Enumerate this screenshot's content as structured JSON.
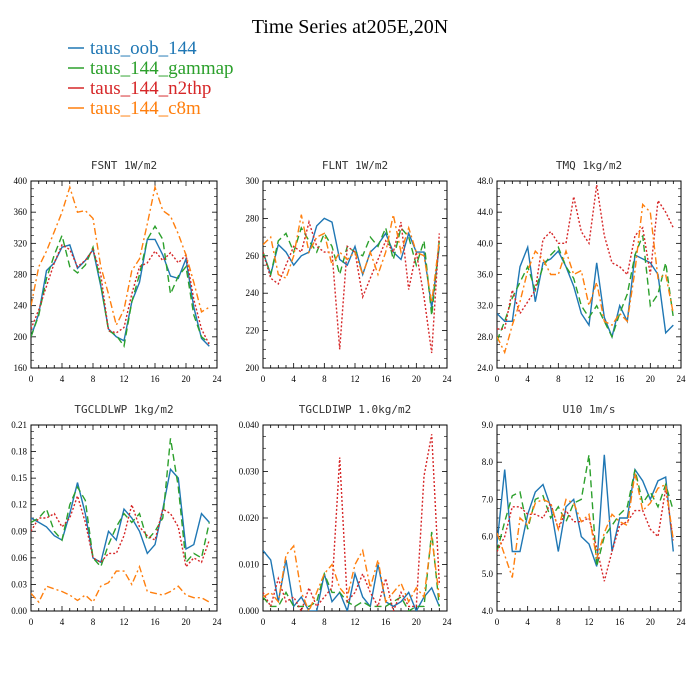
{
  "title": "Time Series at205E,20N",
  "legend": [
    {
      "name": "taus_oob_144",
      "color": "#1f77b4",
      "dash": "solid"
    },
    {
      "name": "taus_144_gammap",
      "color": "#2ca02c",
      "dash": "dashed"
    },
    {
      "name": "taus_144_n2thp",
      "color": "#d62728",
      "dash": "dotted"
    },
    {
      "name": "taus_144_c8m",
      "color": "#ff7f0e",
      "dash": "dashdot"
    }
  ],
  "chart_data": [
    {
      "type": "line",
      "title": "FSNT   1W/m2",
      "xlim": [
        0,
        24
      ],
      "xticks": [
        "0",
        "4",
        "8",
        "12",
        "16",
        "20",
        "24"
      ],
      "ylim": [
        160,
        400
      ],
      "yticks": [
        "160",
        "200",
        "240",
        "280",
        "320",
        "360",
        "400"
      ],
      "x": [
        0,
        1,
        2,
        3,
        4,
        5,
        6,
        7,
        8,
        9,
        10,
        11,
        12,
        13,
        14,
        15,
        16,
        17,
        18,
        19,
        20,
        21,
        22,
        23
      ],
      "series": [
        {
          "name": "taus_oob_144",
          "values": [
            200,
            230,
            285,
            295,
            315,
            318,
            288,
            298,
            312,
            265,
            210,
            200,
            195,
            245,
            270,
            325,
            325,
            305,
            278,
            275,
            300,
            238,
            198,
            188
          ]
        },
        {
          "name": "taus_144_gammap",
          "values": [
            200,
            228,
            275,
            305,
            330,
            290,
            282,
            292,
            315,
            268,
            208,
            202,
            188,
            245,
            280,
            325,
            342,
            325,
            255,
            278,
            290,
            228,
            200,
            192
          ]
        },
        {
          "name": "taus_144_n2thp",
          "values": [
            210,
            235,
            265,
            295,
            318,
            312,
            290,
            298,
            312,
            280,
            208,
            205,
            212,
            255,
            290,
            295,
            310,
            298,
            308,
            295,
            305,
            248,
            210,
            190
          ]
        },
        {
          "name": "taus_144_c8m",
          "values": [
            240,
            290,
            310,
            335,
            360,
            392,
            360,
            362,
            352,
            290,
            255,
            215,
            235,
            285,
            300,
            345,
            392,
            362,
            355,
            332,
            305,
            270,
            232,
            238
          ]
        }
      ]
    },
    {
      "type": "line",
      "title": "FLNT   1W/m2",
      "xlim": [
        0,
        24
      ],
      "xticks": [
        "0",
        "4",
        "8",
        "12",
        "16",
        "20",
        "24"
      ],
      "ylim": [
        200,
        300
      ],
      "yticks": [
        "200",
        "220",
        "240",
        "260",
        "280",
        "300"
      ],
      "x": [
        0,
        1,
        2,
        3,
        4,
        5,
        6,
        7,
        8,
        9,
        10,
        11,
        12,
        13,
        14,
        15,
        16,
        17,
        18,
        19,
        20,
        21,
        22,
        23
      ],
      "series": [
        {
          "name": "taus_oob_144",
          "values": [
            262,
            250,
            266,
            262,
            255,
            260,
            262,
            276,
            280,
            278,
            258,
            255,
            265,
            250,
            262,
            266,
            272,
            262,
            258,
            272,
            262,
            262,
            232,
            265
          ]
        },
        {
          "name": "taus_144_gammap",
          "values": [
            262,
            250,
            268,
            272,
            262,
            275,
            268,
            262,
            272,
            265,
            250,
            265,
            262,
            260,
            270,
            265,
            275,
            258,
            275,
            270,
            255,
            268,
            228,
            268
          ]
        },
        {
          "name": "taus_144_n2thp",
          "values": [
            262,
            248,
            245,
            255,
            265,
            262,
            278,
            265,
            262,
            262,
            210,
            265,
            262,
            238,
            248,
            258,
            268,
            262,
            278,
            242,
            262,
            238,
            208,
            272
          ]
        },
        {
          "name": "taus_144_c8m",
          "values": [
            266,
            270,
            250,
            248,
            260,
            282,
            262,
            270,
            272,
            255,
            262,
            258,
            262,
            250,
            262,
            250,
            262,
            282,
            262,
            275,
            262,
            260,
            235,
            268
          ]
        }
      ]
    },
    {
      "type": "line",
      "title": "TMQ   1kg/m2",
      "xlim": [
        0,
        24
      ],
      "xticks": [
        "0",
        "4",
        "8",
        "12",
        "16",
        "20",
        "24"
      ],
      "ylim": [
        24.0,
        48.0
      ],
      "yticks": [
        "24.0",
        "28.0",
        "32.0",
        "36.0",
        "40.0",
        "44.0",
        "48.0"
      ],
      "x": [
        0,
        1,
        2,
        3,
        4,
        5,
        6,
        7,
        8,
        9,
        10,
        11,
        12,
        13,
        14,
        15,
        16,
        17,
        18,
        19,
        20,
        21,
        22,
        23
      ],
      "series": [
        {
          "name": "taus_oob_144",
          "values": [
            31.0,
            30.0,
            30.0,
            37.0,
            39.5,
            32.5,
            37.5,
            38.0,
            39.0,
            37.0,
            34.5,
            31.0,
            29.5,
            37.5,
            30.5,
            28.0,
            32.0,
            30.0,
            38.5,
            38.0,
            37.5,
            36.0,
            28.5,
            29.5
          ]
        },
        {
          "name": "taus_144_gammap",
          "values": [
            27.5,
            30.0,
            33.0,
            35.0,
            37.0,
            34.0,
            37.0,
            38.5,
            39.5,
            37.0,
            35.5,
            32.0,
            30.5,
            32.0,
            30.0,
            28.0,
            31.0,
            33.5,
            38.5,
            41.0,
            32.0,
            33.5,
            37.5,
            30.5
          ]
        },
        {
          "name": "taus_144_n2thp",
          "values": [
            29.0,
            29.0,
            34.0,
            31.0,
            32.5,
            34.0,
            40.5,
            41.5,
            40.0,
            40.0,
            46.0,
            41.5,
            40.0,
            47.5,
            41.0,
            37.5,
            37.0,
            36.0,
            41.0,
            42.0,
            36.0,
            45.5,
            44.0,
            42.0
          ]
        },
        {
          "name": "taus_144_c8m",
          "values": [
            28.0,
            26.0,
            29.5,
            32.5,
            36.5,
            39.0,
            38.0,
            36.0,
            36.0,
            39.0,
            36.0,
            36.5,
            32.0,
            35.0,
            30.0,
            29.5,
            31.0,
            30.0,
            36.5,
            45.0,
            44.0,
            35.5,
            36.0,
            31.0
          ]
        }
      ]
    },
    {
      "type": "line",
      "title": "TGCLDLWP   1kg/m2",
      "xlim": [
        0,
        24
      ],
      "xticks": [
        "0",
        "4",
        "8",
        "12",
        "16",
        "20",
        "24"
      ],
      "ylim": [
        0.0,
        0.21
      ],
      "yticks": [
        "0.00",
        "0.03",
        "0.06",
        "0.09",
        "0.12",
        "0.15",
        "0.18",
        "0.21"
      ],
      "x": [
        0,
        1,
        2,
        3,
        4,
        5,
        6,
        7,
        8,
        9,
        10,
        11,
        12,
        13,
        14,
        15,
        16,
        17,
        18,
        19,
        20,
        21,
        22,
        23
      ],
      "series": [
        {
          "name": "taus_oob_144",
          "values": [
            0.105,
            0.1,
            0.095,
            0.085,
            0.08,
            0.11,
            0.145,
            0.11,
            0.06,
            0.055,
            0.09,
            0.08,
            0.115,
            0.105,
            0.09,
            0.065,
            0.075,
            0.115,
            0.16,
            0.15,
            0.07,
            0.075,
            0.11,
            0.1
          ]
        },
        {
          "name": "taus_144_gammap",
          "values": [
            0.1,
            0.105,
            0.115,
            0.09,
            0.08,
            0.12,
            0.14,
            0.125,
            0.06,
            0.05,
            0.075,
            0.095,
            0.11,
            0.1,
            0.11,
            0.08,
            0.09,
            0.105,
            0.195,
            0.14,
            0.055,
            0.065,
            0.06,
            0.1
          ]
        },
        {
          "name": "taus_144_n2thp",
          "values": [
            0.09,
            0.105,
            0.105,
            0.11,
            0.095,
            0.105,
            0.13,
            0.1,
            0.06,
            0.055,
            0.065,
            0.065,
            0.085,
            0.12,
            0.095,
            0.085,
            0.08,
            0.115,
            0.11,
            0.095,
            0.05,
            0.06,
            0.055,
            0.08
          ]
        },
        {
          "name": "taus_144_c8m",
          "values": [
            0.02,
            0.01,
            0.028,
            0.025,
            0.022,
            0.018,
            0.012,
            0.018,
            0.01,
            0.028,
            0.032,
            0.045,
            0.045,
            0.03,
            0.05,
            0.022,
            0.02,
            0.018,
            0.022,
            0.028,
            0.018,
            0.015,
            0.015,
            0.01
          ]
        }
      ]
    },
    {
      "type": "line",
      "title": "TGCLDIWP   1.0kg/m2",
      "xlim": [
        0,
        24
      ],
      "xticks": [
        "0",
        "4",
        "8",
        "12",
        "16",
        "20",
        "24"
      ],
      "ylim": [
        0.0,
        0.04
      ],
      "yticks": [
        "0.000",
        "0.010",
        "0.020",
        "0.030",
        "0.040"
      ],
      "x": [
        0,
        1,
        2,
        3,
        4,
        5,
        6,
        7,
        8,
        9,
        10,
        11,
        12,
        13,
        14,
        15,
        16,
        17,
        18,
        19,
        20,
        21,
        22,
        23
      ],
      "series": [
        {
          "name": "taus_oob_144",
          "values": [
            0.013,
            0.011,
            0.002,
            0.011,
            0.001,
            0.003,
            0.0,
            0.0,
            0.008,
            0.002,
            0.004,
            0.0,
            0.008,
            0.003,
            0.001,
            0.01,
            0.002,
            0.001,
            0.002,
            0.004,
            0.0,
            0.003,
            0.005,
            0.001
          ]
        },
        {
          "name": "taus_144_gammap",
          "values": [
            0.003,
            0.001,
            0.001,
            0.004,
            0.001,
            0.001,
            0.001,
            0.002,
            0.008,
            0.004,
            0.004,
            0.002,
            0.001,
            0.002,
            0.001,
            0.001,
            0.001,
            0.002,
            0.003,
            0.0,
            0.001,
            0.001,
            0.017,
            0.001
          ]
        },
        {
          "name": "taus_144_n2thp",
          "values": [
            0.004,
            0.001,
            0.007,
            0.002,
            0.003,
            0.0,
            0.005,
            0.001,
            0.003,
            0.005,
            0.033,
            0.002,
            0.004,
            0.008,
            0.004,
            0.001,
            0.007,
            0.0,
            0.004,
            0.001,
            0.001,
            0.029,
            0.038,
            0.006
          ]
        },
        {
          "name": "taus_144_c8m",
          "values": [
            0.003,
            0.004,
            0.002,
            0.012,
            0.014,
            0.004,
            0.0,
            0.004,
            0.008,
            0.01,
            0.005,
            0.003,
            0.01,
            0.013,
            0.005,
            0.011,
            0.002,
            0.004,
            0.006,
            0.002,
            0.005,
            0.003,
            0.016,
            0.003
          ]
        }
      ]
    },
    {
      "type": "line",
      "title": "U10   1m/s",
      "xlim": [
        0,
        24
      ],
      "xticks": [
        "0",
        "4",
        "8",
        "12",
        "16",
        "20",
        "24"
      ],
      "ylim": [
        4.0,
        9.0
      ],
      "yticks": [
        "4.0",
        "5.0",
        "6.0",
        "7.0",
        "8.0",
        "9.0"
      ],
      "x": [
        0,
        1,
        2,
        3,
        4,
        5,
        6,
        7,
        8,
        9,
        10,
        11,
        12,
        13,
        14,
        15,
        16,
        17,
        18,
        19,
        20,
        21,
        22,
        23
      ],
      "series": [
        {
          "name": "taus_oob_144",
          "values": [
            5.8,
            7.8,
            5.6,
            5.6,
            6.6,
            7.2,
            7.4,
            6.8,
            5.6,
            6.8,
            7.0,
            6.0,
            5.8,
            5.2,
            8.2,
            5.6,
            6.5,
            6.5,
            7.8,
            7.5,
            7.0,
            7.5,
            7.6,
            5.6
          ]
        },
        {
          "name": "taus_144_gammap",
          "values": [
            5.6,
            6.4,
            7.1,
            7.2,
            6.2,
            7.0,
            7.1,
            6.5,
            6.8,
            6.4,
            6.9,
            7.0,
            8.2,
            5.2,
            6.0,
            6.3,
            6.6,
            6.8,
            7.8,
            6.9,
            7.2,
            6.8,
            7.4,
            6.7
          ]
        },
        {
          "name": "taus_144_n2thp",
          "values": [
            5.6,
            6.0,
            6.8,
            6.8,
            6.6,
            6.6,
            6.5,
            6.9,
            6.2,
            6.7,
            6.4,
            6.4,
            6.5,
            5.7,
            4.8,
            5.6,
            6.3,
            6.4,
            6.7,
            6.7,
            6.2,
            6.0,
            7.3,
            5.9
          ]
        },
        {
          "name": "taus_144_c8m",
          "values": [
            6.1,
            5.5,
            4.9,
            6.5,
            6.3,
            6.9,
            7.0,
            6.9,
            6.2,
            7.0,
            6.9,
            6.4,
            6.6,
            5.4,
            6.1,
            6.6,
            6.4,
            6.3,
            7.7,
            6.7,
            6.9,
            7.3,
            7.4,
            5.9
          ]
        }
      ]
    }
  ]
}
